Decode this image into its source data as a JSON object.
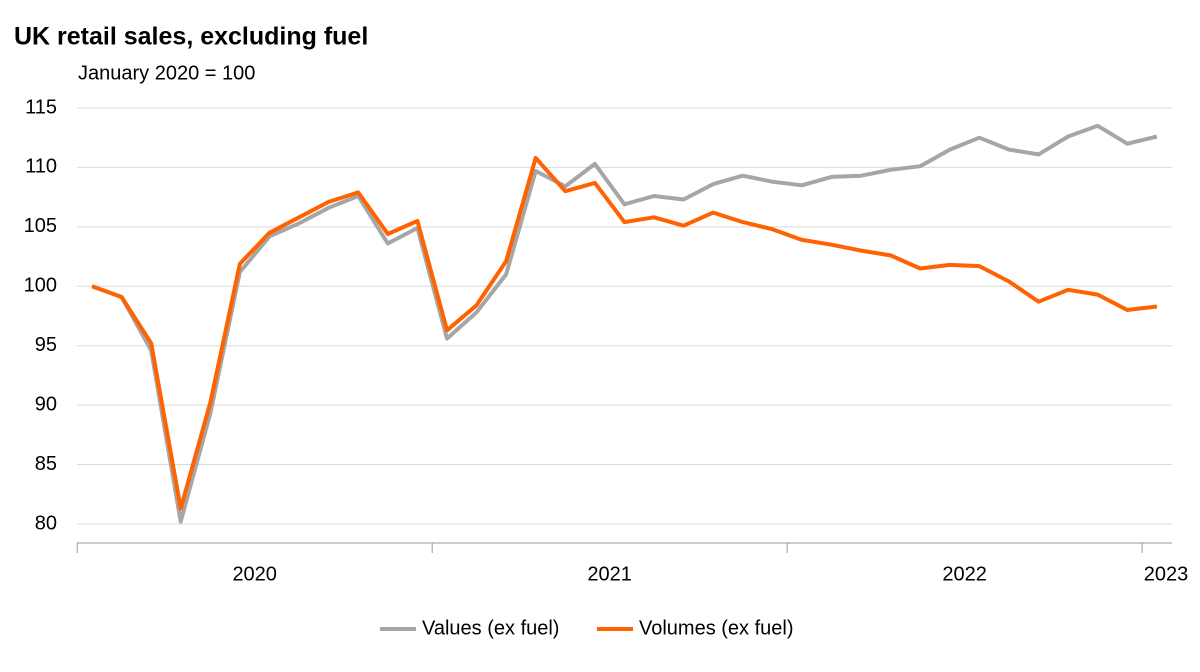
{
  "chart_data": {
    "type": "line",
    "title": "UK retail sales, excluding fuel",
    "subtitle": "January 2020 = 100",
    "categories": [
      null,
      null,
      null,
      null,
      null,
      null,
      null,
      null,
      null,
      null,
      null,
      null,
      null,
      null,
      null,
      null,
      null,
      null,
      null,
      null,
      null,
      null,
      null,
      null,
      null,
      null,
      null,
      null,
      null,
      null,
      null,
      null,
      null,
      null,
      null,
      null,
      null
    ],
    "xgroups": [
      "2020",
      "2021",
      "2022",
      "2023"
    ],
    "series": [
      {
        "name": "Values (ex fuel)",
        "color": "#a6a6a6",
        "values": [
          100,
          99.1,
          94.6,
          80.2,
          89.3,
          101.2,
          104.2,
          105.3,
          106.6,
          107.6,
          103.6,
          104.9,
          95.6,
          97.8,
          101,
          109.7,
          108.4,
          110.3,
          106.9,
          107.6,
          107.3,
          108.6,
          109.3,
          108.8,
          108.5,
          109.2,
          109.3,
          109.8,
          110.1,
          111.5,
          112.5,
          111.5,
          111.1,
          112.6,
          113.5,
          112.0,
          112.6
        ]
      },
      {
        "name": "Volumes (ex fuel)",
        "color": "#ff6200",
        "values": [
          100,
          99.1,
          95.2,
          81.3,
          90.2,
          101.9,
          104.5,
          105.8,
          107.1,
          107.9,
          104.4,
          105.5,
          96.3,
          98.4,
          102.1,
          110.8,
          108.0,
          108.7,
          105.4,
          105.8,
          105.1,
          106.2,
          105.4,
          104.8,
          103.9,
          103.5,
          103.0,
          102.6,
          101.5,
          101.8,
          101.7,
          100.4,
          98.7,
          99.7,
          99.3,
          98.0,
          98.3
        ]
      }
    ],
    "ylim": [
      78.4,
      115
    ],
    "yticks": [
      80,
      85,
      90,
      95,
      100,
      105,
      110,
      115
    ],
    "grid": true,
    "legend": "bottom"
  }
}
